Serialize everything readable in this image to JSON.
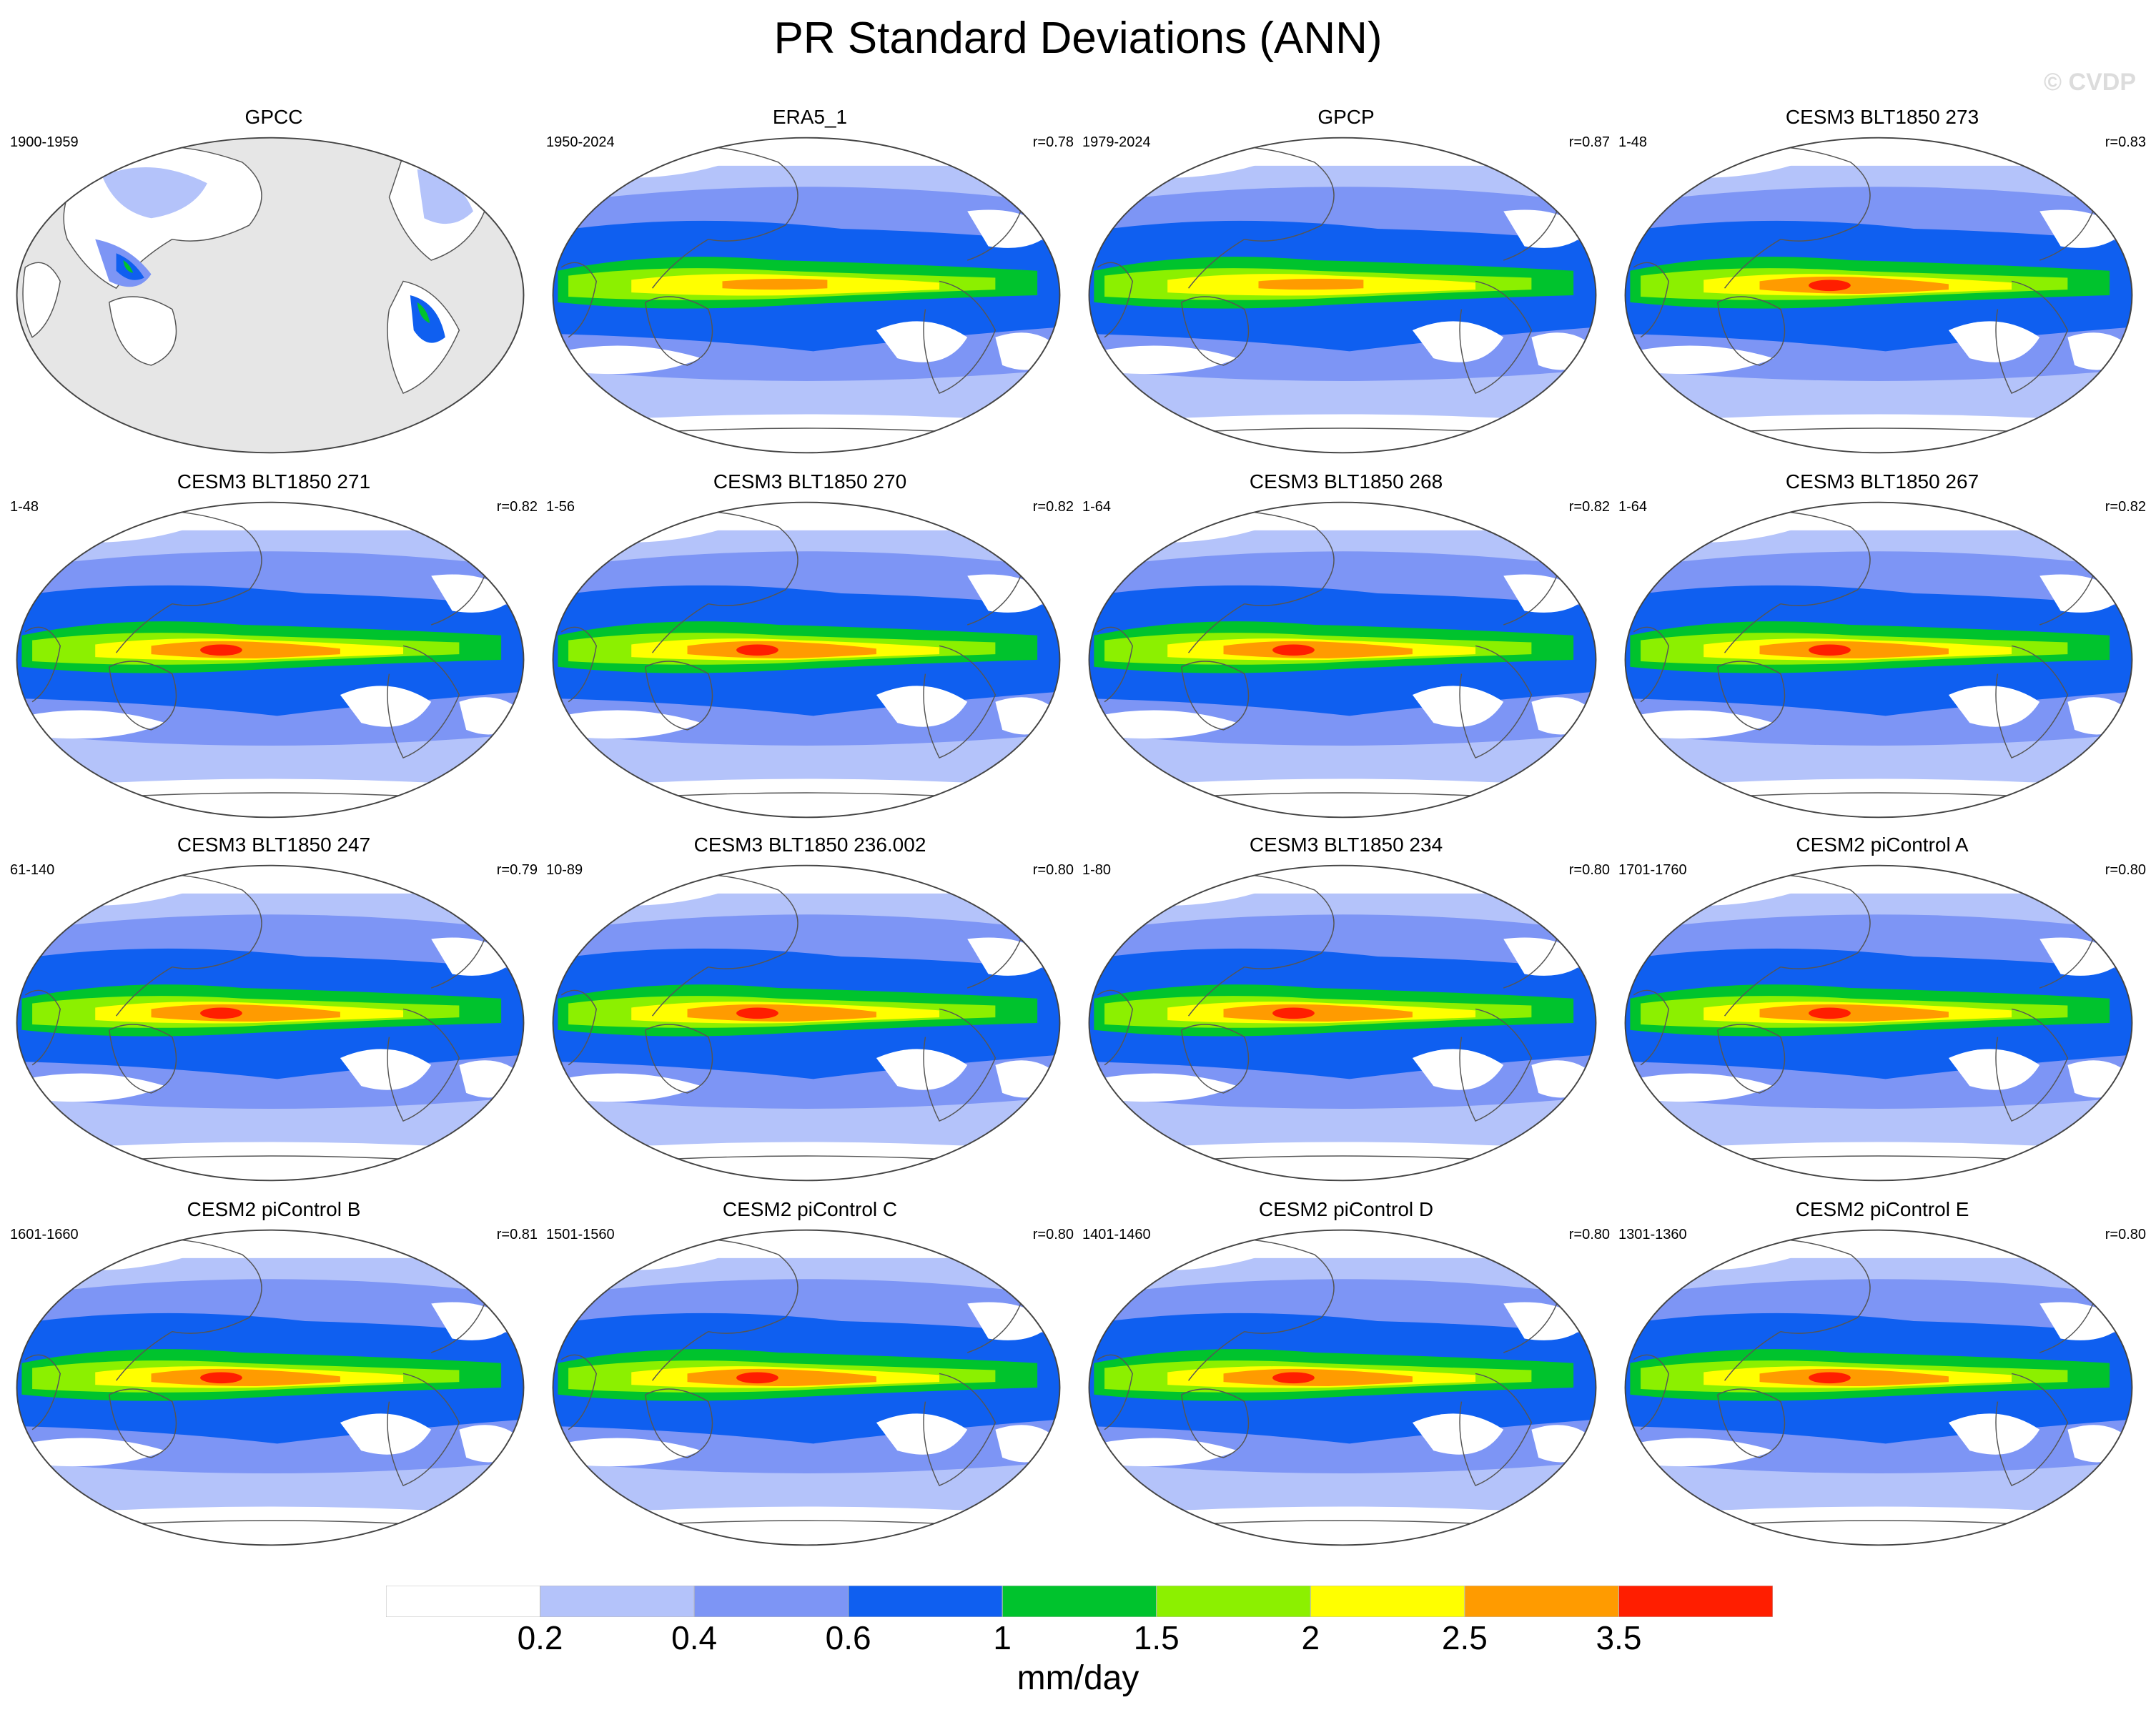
{
  "title": "PR Standard Deviations (ANN)",
  "watermark": "© CVDP",
  "panels": [
    {
      "title": "GPCC",
      "period": "1900-1959",
      "r": "",
      "style": "obs-land"
    },
    {
      "title": "ERA5_1",
      "period": "1950-2024",
      "r": "r=0.78",
      "style": "obs"
    },
    {
      "title": "GPCP",
      "period": "1979-2024",
      "r": "r=0.87",
      "style": "obs"
    },
    {
      "title": "CESM3 BLT1850 273",
      "period": "1-48",
      "r": "r=0.83",
      "style": "model"
    },
    {
      "title": "CESM3 BLT1850 271",
      "period": "1-48",
      "r": "r=0.82",
      "style": "model"
    },
    {
      "title": "CESM3 BLT1850 270",
      "period": "1-56",
      "r": "r=0.82",
      "style": "model"
    },
    {
      "title": "CESM3 BLT1850 268",
      "period": "1-64",
      "r": "r=0.82",
      "style": "model"
    },
    {
      "title": "CESM3 BLT1850 267",
      "period": "1-64",
      "r": "r=0.82",
      "style": "model"
    },
    {
      "title": "CESM3 BLT1850 247",
      "period": "61-140",
      "r": "r=0.79",
      "style": "model"
    },
    {
      "title": "CESM3 BLT1850 236.002",
      "period": "10-89",
      "r": "r=0.80",
      "style": "model"
    },
    {
      "title": "CESM3 BLT1850 234",
      "period": "1-80",
      "r": "r=0.80",
      "style": "model"
    },
    {
      "title": "CESM2 piControl A",
      "period": "1701-1760",
      "r": "r=0.80",
      "style": "model"
    },
    {
      "title": "CESM2 piControl B",
      "period": "1601-1660",
      "r": "r=0.81",
      "style": "model"
    },
    {
      "title": "CESM2 piControl C",
      "period": "1501-1560",
      "r": "r=0.80",
      "style": "model"
    },
    {
      "title": "CESM2 piControl D",
      "period": "1401-1460",
      "r": "r=0.80",
      "style": "model"
    },
    {
      "title": "CESM2 piControl E",
      "period": "1301-1360",
      "r": "r=0.80",
      "style": "model"
    }
  ],
  "colorbar": {
    "units": "mm/day",
    "labels": [
      "0.2",
      "0.4",
      "0.6",
      "1",
      "1.5",
      "2",
      "2.5",
      "3.5"
    ],
    "colors": [
      "#ffffff",
      "#b4c3fa",
      "#7d95f5",
      "#0f5ff0",
      "#00c32d",
      "#8cf000",
      "#ffff00",
      "#ff9b00",
      "#ff1e00"
    ]
  }
}
